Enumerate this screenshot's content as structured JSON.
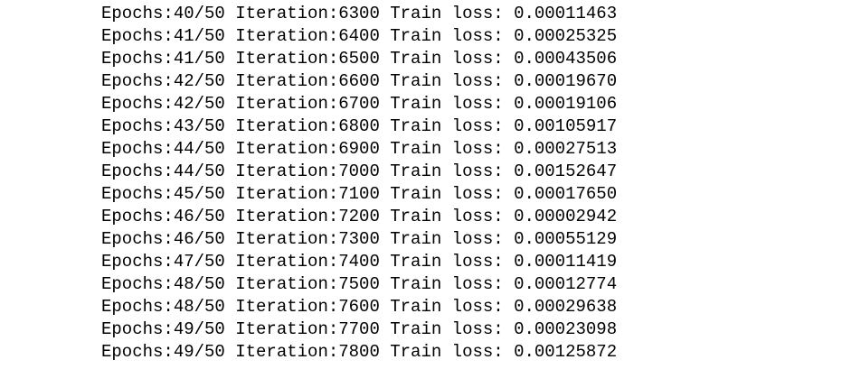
{
  "lines": [
    "Epochs:40/50 Iteration:6300 Train loss: 0.00011463",
    "Epochs:41/50 Iteration:6400 Train loss: 0.00025325",
    "Epochs:41/50 Iteration:6500 Train loss: 0.00043506",
    "Epochs:42/50 Iteration:6600 Train loss: 0.00019670",
    "Epochs:42/50 Iteration:6700 Train loss: 0.00019106",
    "Epochs:43/50 Iteration:6800 Train loss: 0.00105917",
    "Epochs:44/50 Iteration:6900 Train loss: 0.00027513",
    "Epochs:44/50 Iteration:7000 Train loss: 0.00152647",
    "Epochs:45/50 Iteration:7100 Train loss: 0.00017650",
    "Epochs:46/50 Iteration:7200 Train loss: 0.00002942",
    "Epochs:46/50 Iteration:7300 Train loss: 0.00055129",
    "Epochs:47/50 Iteration:7400 Train loss: 0.00011419",
    "Epochs:48/50 Iteration:7500 Train loss: 0.00012774",
    "Epochs:48/50 Iteration:7600 Train loss: 0.00029638",
    "Epochs:49/50 Iteration:7700 Train loss: 0.00023098",
    "Epochs:49/50 Iteration:7800 Train loss: 0.00125872"
  ]
}
